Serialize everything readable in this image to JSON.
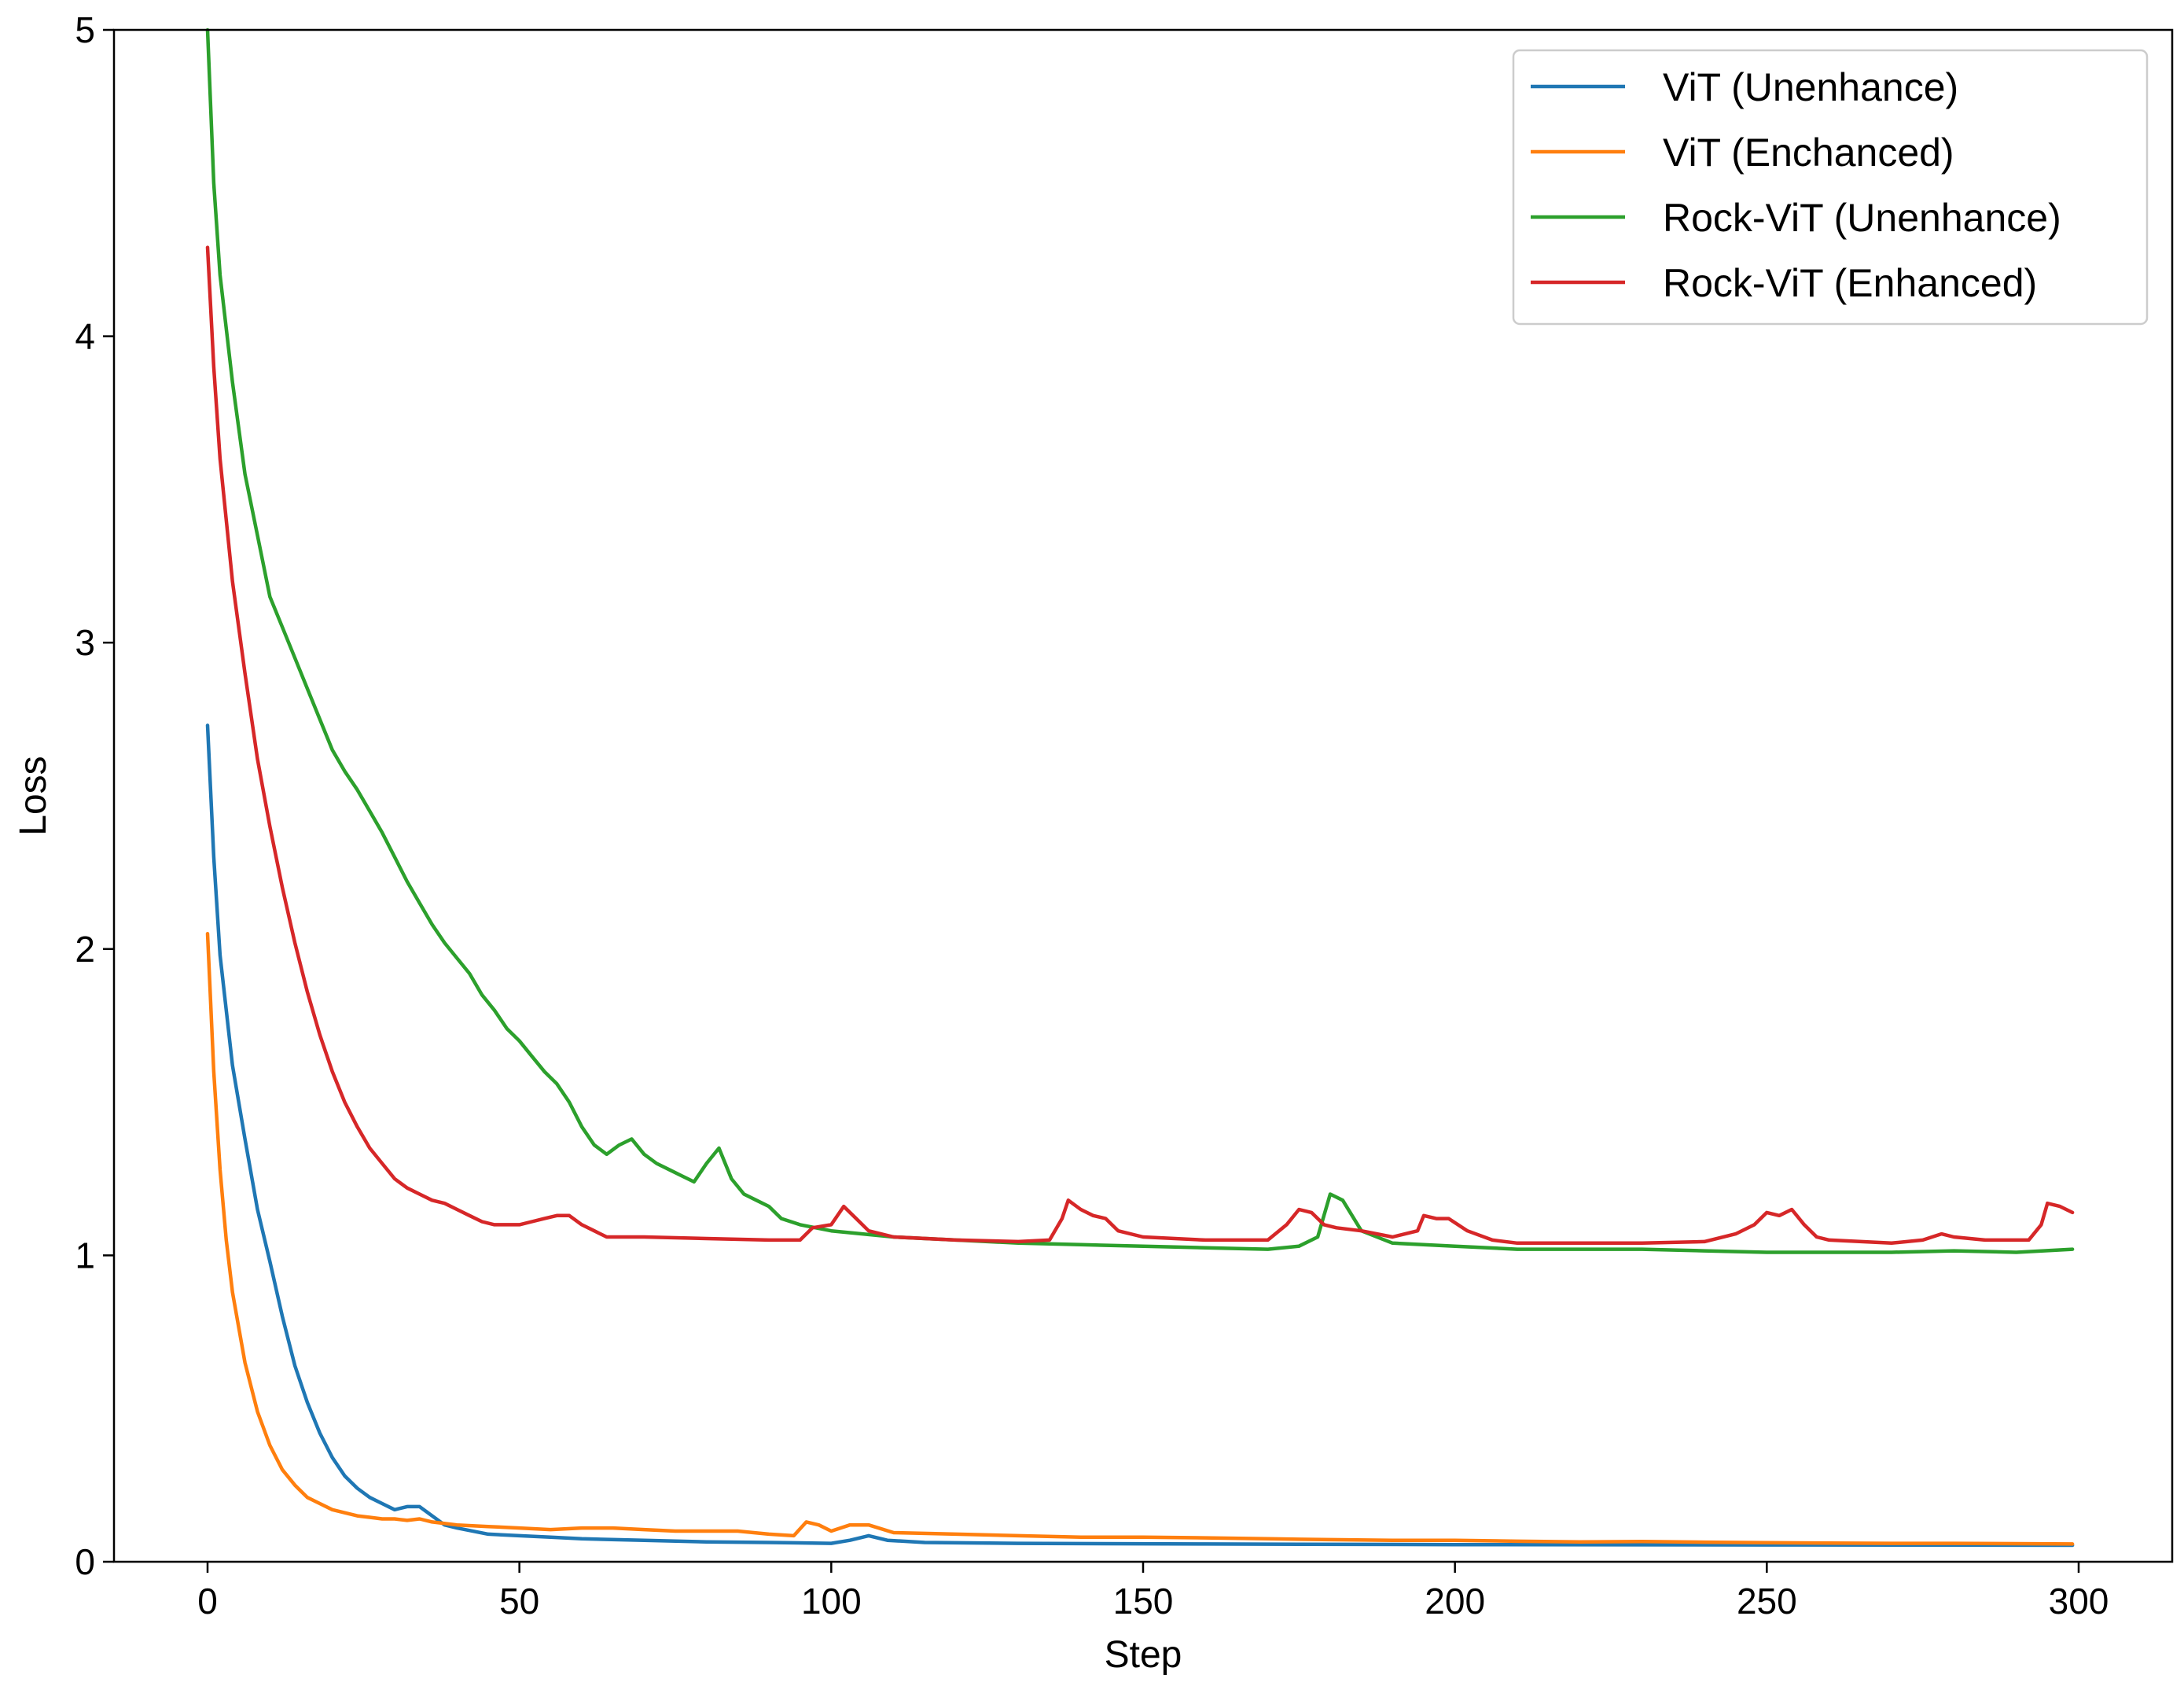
{
  "chart_data": {
    "type": "line",
    "title": "",
    "xlabel": "Step",
    "ylabel": "Loss",
    "xlim": [
      -15,
      315
    ],
    "ylim": [
      0,
      5
    ],
    "xticks": [
      0,
      50,
      100,
      150,
      200,
      250,
      300
    ],
    "yticks": [
      0,
      1,
      2,
      3,
      4,
      5
    ],
    "grid": false,
    "legend_position": "top-right",
    "series": [
      {
        "name": "ViT (Unenhance)",
        "color": "#1f77b4",
        "points": [
          [
            0,
            2.73
          ],
          [
            1,
            2.3
          ],
          [
            2,
            1.98
          ],
          [
            4,
            1.62
          ],
          [
            6,
            1.38
          ],
          [
            8,
            1.15
          ],
          [
            10,
            0.98
          ],
          [
            12,
            0.8
          ],
          [
            14,
            0.64
          ],
          [
            16,
            0.52
          ],
          [
            18,
            0.42
          ],
          [
            20,
            0.34
          ],
          [
            22,
            0.28
          ],
          [
            24,
            0.24
          ],
          [
            26,
            0.21
          ],
          [
            28,
            0.19
          ],
          [
            30,
            0.17
          ],
          [
            32,
            0.18
          ],
          [
            34,
            0.18
          ],
          [
            36,
            0.15
          ],
          [
            38,
            0.12
          ],
          [
            40,
            0.11
          ],
          [
            45,
            0.09
          ],
          [
            50,
            0.085
          ],
          [
            55,
            0.08
          ],
          [
            60,
            0.075
          ],
          [
            70,
            0.07
          ],
          [
            80,
            0.065
          ],
          [
            90,
            0.063
          ],
          [
            100,
            0.06
          ],
          [
            103,
            0.07
          ],
          [
            106,
            0.085
          ],
          [
            109,
            0.07
          ],
          [
            115,
            0.063
          ],
          [
            130,
            0.06
          ],
          [
            160,
            0.058
          ],
          [
            200,
            0.056
          ],
          [
            250,
            0.055
          ],
          [
            299,
            0.054
          ]
        ]
      },
      {
        "name": "ViT (Enchanced)",
        "color": "#ff7f0e",
        "points": [
          [
            0,
            2.05
          ],
          [
            1,
            1.6
          ],
          [
            2,
            1.28
          ],
          [
            3,
            1.05
          ],
          [
            4,
            0.88
          ],
          [
            6,
            0.65
          ],
          [
            8,
            0.49
          ],
          [
            10,
            0.38
          ],
          [
            12,
            0.3
          ],
          [
            14,
            0.25
          ],
          [
            16,
            0.21
          ],
          [
            18,
            0.19
          ],
          [
            20,
            0.17
          ],
          [
            22,
            0.16
          ],
          [
            24,
            0.15
          ],
          [
            26,
            0.145
          ],
          [
            28,
            0.14
          ],
          [
            30,
            0.14
          ],
          [
            32,
            0.135
          ],
          [
            34,
            0.14
          ],
          [
            36,
            0.13
          ],
          [
            40,
            0.12
          ],
          [
            45,
            0.115
          ],
          [
            50,
            0.11
          ],
          [
            55,
            0.105
          ],
          [
            60,
            0.11
          ],
          [
            65,
            0.11
          ],
          [
            70,
            0.105
          ],
          [
            75,
            0.1
          ],
          [
            80,
            0.1
          ],
          [
            85,
            0.1
          ],
          [
            90,
            0.09
          ],
          [
            94,
            0.085
          ],
          [
            96,
            0.13
          ],
          [
            98,
            0.12
          ],
          [
            100,
            0.1
          ],
          [
            103,
            0.12
          ],
          [
            106,
            0.12
          ],
          [
            110,
            0.095
          ],
          [
            120,
            0.09
          ],
          [
            130,
            0.085
          ],
          [
            140,
            0.08
          ],
          [
            150,
            0.08
          ],
          [
            160,
            0.078
          ],
          [
            170,
            0.075
          ],
          [
            180,
            0.072
          ],
          [
            190,
            0.07
          ],
          [
            200,
            0.07
          ],
          [
            210,
            0.067
          ],
          [
            220,
            0.065
          ],
          [
            230,
            0.066
          ],
          [
            240,
            0.064
          ],
          [
            250,
            0.062
          ],
          [
            260,
            0.061
          ],
          [
            270,
            0.06
          ],
          [
            280,
            0.06
          ],
          [
            290,
            0.059
          ],
          [
            299,
            0.058
          ]
        ]
      },
      {
        "name": "Rock-ViT (Unenhance)",
        "color": "#2ca02c",
        "points": [
          [
            0,
            5.0
          ],
          [
            1,
            4.5
          ],
          [
            2,
            4.2
          ],
          [
            4,
            3.85
          ],
          [
            6,
            3.55
          ],
          [
            8,
            3.35
          ],
          [
            10,
            3.15
          ],
          [
            12,
            3.05
          ],
          [
            14,
            2.95
          ],
          [
            16,
            2.85
          ],
          [
            18,
            2.75
          ],
          [
            20,
            2.65
          ],
          [
            22,
            2.58
          ],
          [
            24,
            2.52
          ],
          [
            26,
            2.45
          ],
          [
            28,
            2.38
          ],
          [
            30,
            2.3
          ],
          [
            32,
            2.22
          ],
          [
            34,
            2.15
          ],
          [
            36,
            2.08
          ],
          [
            38,
            2.02
          ],
          [
            40,
            1.97
          ],
          [
            42,
            1.92
          ],
          [
            44,
            1.85
          ],
          [
            46,
            1.8
          ],
          [
            48,
            1.74
          ],
          [
            50,
            1.7
          ],
          [
            52,
            1.65
          ],
          [
            54,
            1.6
          ],
          [
            56,
            1.56
          ],
          [
            58,
            1.5
          ],
          [
            60,
            1.42
          ],
          [
            62,
            1.36
          ],
          [
            64,
            1.33
          ],
          [
            66,
            1.36
          ],
          [
            68,
            1.38
          ],
          [
            70,
            1.33
          ],
          [
            72,
            1.3
          ],
          [
            74,
            1.28
          ],
          [
            76,
            1.26
          ],
          [
            78,
            1.24
          ],
          [
            80,
            1.3
          ],
          [
            82,
            1.35
          ],
          [
            84,
            1.25
          ],
          [
            86,
            1.2
          ],
          [
            88,
            1.18
          ],
          [
            90,
            1.16
          ],
          [
            92,
            1.12
          ],
          [
            95,
            1.1
          ],
          [
            100,
            1.08
          ],
          [
            110,
            1.06
          ],
          [
            120,
            1.05
          ],
          [
            130,
            1.04
          ],
          [
            140,
            1.035
          ],
          [
            150,
            1.03
          ],
          [
            160,
            1.025
          ],
          [
            170,
            1.02
          ],
          [
            175,
            1.03
          ],
          [
            178,
            1.06
          ],
          [
            180,
            1.2
          ],
          [
            182,
            1.18
          ],
          [
            185,
            1.08
          ],
          [
            190,
            1.04
          ],
          [
            200,
            1.03
          ],
          [
            210,
            1.02
          ],
          [
            220,
            1.02
          ],
          [
            230,
            1.02
          ],
          [
            240,
            1.015
          ],
          [
            250,
            1.01
          ],
          [
            260,
            1.01
          ],
          [
            270,
            1.01
          ],
          [
            280,
            1.015
          ],
          [
            290,
            1.01
          ],
          [
            299,
            1.02
          ]
        ]
      },
      {
        "name": "Rock-ViT (Enhanced)",
        "color": "#d62728",
        "points": [
          [
            0,
            4.29
          ],
          [
            1,
            3.9
          ],
          [
            2,
            3.6
          ],
          [
            4,
            3.2
          ],
          [
            6,
            2.9
          ],
          [
            8,
            2.62
          ],
          [
            10,
            2.4
          ],
          [
            12,
            2.2
          ],
          [
            14,
            2.02
          ],
          [
            16,
            1.86
          ],
          [
            18,
            1.72
          ],
          [
            20,
            1.6
          ],
          [
            22,
            1.5
          ],
          [
            24,
            1.42
          ],
          [
            26,
            1.35
          ],
          [
            28,
            1.3
          ],
          [
            30,
            1.25
          ],
          [
            32,
            1.22
          ],
          [
            34,
            1.2
          ],
          [
            36,
            1.18
          ],
          [
            38,
            1.17
          ],
          [
            40,
            1.15
          ],
          [
            42,
            1.13
          ],
          [
            44,
            1.11
          ],
          [
            46,
            1.1
          ],
          [
            48,
            1.1
          ],
          [
            50,
            1.1
          ],
          [
            52,
            1.11
          ],
          [
            54,
            1.12
          ],
          [
            56,
            1.13
          ],
          [
            58,
            1.13
          ],
          [
            60,
            1.1
          ],
          [
            62,
            1.08
          ],
          [
            64,
            1.06
          ],
          [
            70,
            1.06
          ],
          [
            80,
            1.055
          ],
          [
            90,
            1.05
          ],
          [
            95,
            1.05
          ],
          [
            97,
            1.09
          ],
          [
            100,
            1.1
          ],
          [
            102,
            1.16
          ],
          [
            104,
            1.12
          ],
          [
            106,
            1.08
          ],
          [
            110,
            1.06
          ],
          [
            120,
            1.05
          ],
          [
            130,
            1.045
          ],
          [
            135,
            1.05
          ],
          [
            137,
            1.12
          ],
          [
            138,
            1.18
          ],
          [
            140,
            1.15
          ],
          [
            142,
            1.13
          ],
          [
            144,
            1.12
          ],
          [
            146,
            1.08
          ],
          [
            150,
            1.06
          ],
          [
            160,
            1.05
          ],
          [
            170,
            1.05
          ],
          [
            173,
            1.1
          ],
          [
            175,
            1.15
          ],
          [
            177,
            1.14
          ],
          [
            179,
            1.1
          ],
          [
            181,
            1.09
          ],
          [
            185,
            1.08
          ],
          [
            190,
            1.06
          ],
          [
            194,
            1.08
          ],
          [
            195,
            1.13
          ],
          [
            197,
            1.12
          ],
          [
            199,
            1.12
          ],
          [
            202,
            1.08
          ],
          [
            206,
            1.05
          ],
          [
            210,
            1.04
          ],
          [
            220,
            1.04
          ],
          [
            230,
            1.04
          ],
          [
            240,
            1.045
          ],
          [
            245,
            1.07
          ],
          [
            248,
            1.1
          ],
          [
            250,
            1.14
          ],
          [
            252,
            1.13
          ],
          [
            254,
            1.15
          ],
          [
            256,
            1.1
          ],
          [
            258,
            1.06
          ],
          [
            260,
            1.05
          ],
          [
            270,
            1.04
          ],
          [
            275,
            1.05
          ],
          [
            278,
            1.07
          ],
          [
            280,
            1.06
          ],
          [
            285,
            1.05
          ],
          [
            292,
            1.05
          ],
          [
            294,
            1.1
          ],
          [
            295,
            1.17
          ],
          [
            297,
            1.16
          ],
          [
            299,
            1.14
          ]
        ]
      }
    ]
  }
}
